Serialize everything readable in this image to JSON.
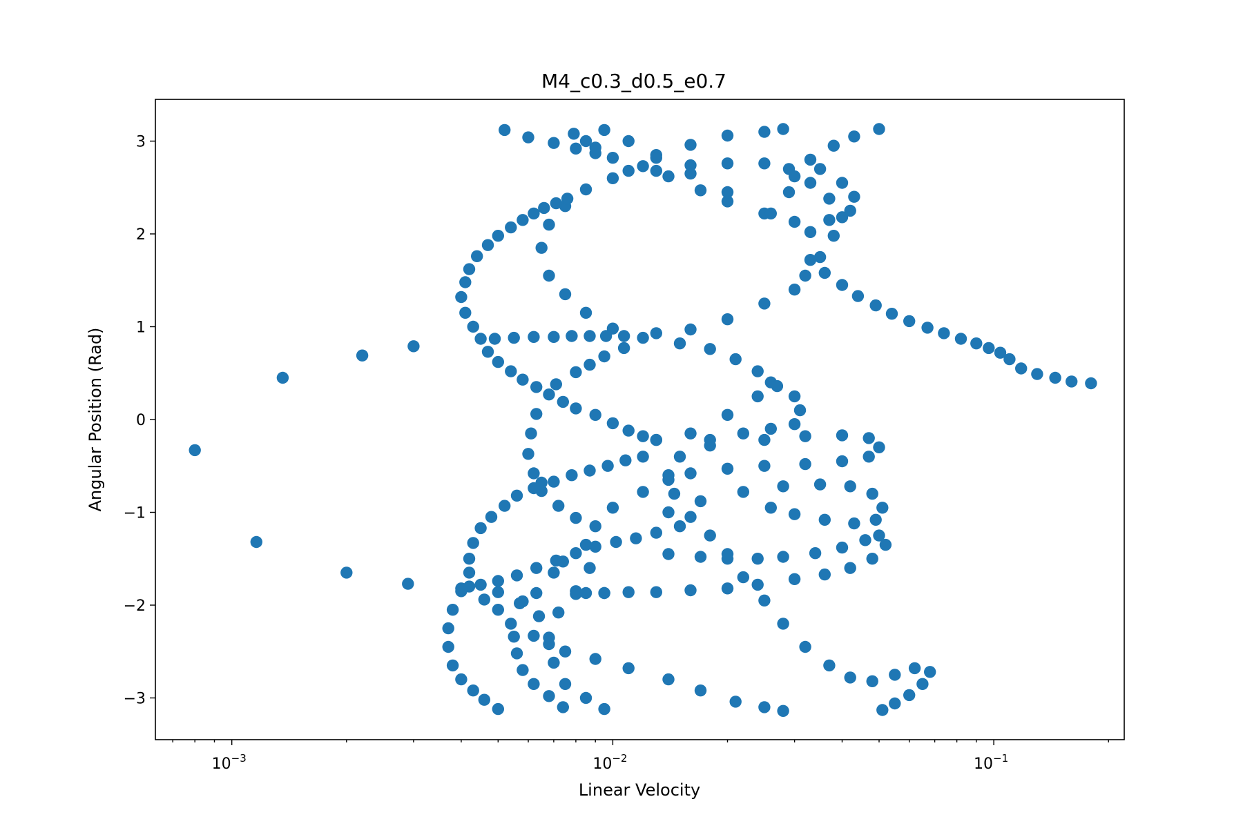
{
  "chart_data": {
    "type": "scatter",
    "title": "M4_c0.3_d0.5_e0.7",
    "xlabel": "Linear Velocity",
    "ylabel": "Angular Position (Rad)",
    "xscale": "log",
    "xlim": [
      0.00063,
      0.22
    ],
    "ylim": [
      -3.45,
      3.45
    ],
    "grid": false,
    "marker_color": "#1f77b4",
    "x_ticks": [
      {
        "value": 0.001,
        "base": "10",
        "exp": "−3"
      },
      {
        "value": 0.01,
        "base": "10",
        "exp": "−2"
      },
      {
        "value": 0.1,
        "base": "10",
        "exp": "−1"
      }
    ],
    "y_ticks": [
      {
        "value": 3,
        "label": "3"
      },
      {
        "value": 2,
        "label": "2"
      },
      {
        "value": 1,
        "label": "1"
      },
      {
        "value": 0,
        "label": "0"
      },
      {
        "value": -1,
        "label": "−1"
      },
      {
        "value": -2,
        "label": "−2"
      },
      {
        "value": -3,
        "label": "−3"
      }
    ],
    "scatter_points": [
      [
        0.0008,
        -0.33
      ],
      [
        0.00116,
        -1.32
      ],
      [
        0.00136,
        0.45
      ],
      [
        0.002,
        -1.65
      ],
      [
        0.0022,
        0.69
      ],
      [
        0.0029,
        -1.77
      ],
      [
        0.003,
        0.79
      ],
      [
        0.0052,
        3.12
      ],
      [
        0.006,
        3.04
      ],
      [
        0.007,
        2.98
      ],
      [
        0.008,
        2.92
      ],
      [
        0.009,
        2.87
      ],
      [
        0.01,
        2.82
      ],
      [
        0.012,
        2.73
      ],
      [
        0.014,
        2.62
      ],
      [
        0.017,
        2.47
      ],
      [
        0.02,
        2.35
      ],
      [
        0.025,
        2.22
      ],
      [
        0.03,
        2.13
      ],
      [
        0.0079,
        3.08
      ],
      [
        0.0085,
        3.0
      ],
      [
        0.009,
        2.93
      ],
      [
        0.0095,
        3.12
      ],
      [
        0.011,
        3.0
      ],
      [
        0.013,
        2.85
      ],
      [
        0.016,
        2.65
      ],
      [
        0.02,
        2.45
      ],
      [
        0.026,
        2.22
      ],
      [
        0.033,
        2.02
      ],
      [
        0.01,
        2.6
      ],
      [
        0.013,
        2.68
      ],
      [
        0.016,
        2.74
      ],
      [
        0.02,
        2.76
      ],
      [
        0.025,
        2.76
      ],
      [
        0.029,
        2.7
      ],
      [
        0.033,
        2.55
      ],
      [
        0.037,
        2.38
      ],
      [
        0.04,
        2.18
      ],
      [
        0.038,
        1.98
      ],
      [
        0.035,
        1.75
      ],
      [
        0.032,
        1.55
      ],
      [
        0.03,
        1.4
      ],
      [
        0.025,
        1.25
      ],
      [
        0.02,
        1.08
      ],
      [
        0.016,
        0.97
      ],
      [
        0.013,
        0.93
      ],
      [
        0.0085,
        2.48
      ],
      [
        0.0075,
        2.3
      ],
      [
        0.0068,
        2.1
      ],
      [
        0.0065,
        1.85
      ],
      [
        0.0068,
        1.55
      ],
      [
        0.0075,
        1.35
      ],
      [
        0.0085,
        1.15
      ],
      [
        0.01,
        0.98
      ],
      [
        0.012,
        0.88
      ],
      [
        0.015,
        0.82
      ],
      [
        0.018,
        0.76
      ],
      [
        0.021,
        0.65
      ],
      [
        0.024,
        0.52
      ],
      [
        0.026,
        0.4
      ],
      [
        0.028,
        3.13
      ],
      [
        0.025,
        3.1
      ],
      [
        0.02,
        3.06
      ],
      [
        0.016,
        2.96
      ],
      [
        0.013,
        2.82
      ],
      [
        0.011,
        2.68
      ],
      [
        0.05,
        3.13
      ],
      [
        0.043,
        3.05
      ],
      [
        0.038,
        2.95
      ],
      [
        0.033,
        2.8
      ],
      [
        0.03,
        2.62
      ],
      [
        0.029,
        2.45
      ],
      [
        0.035,
        2.7
      ],
      [
        0.04,
        2.55
      ],
      [
        0.043,
        2.4
      ],
      [
        0.042,
        2.25
      ],
      [
        0.037,
        2.15
      ],
      [
        0.033,
        1.72
      ],
      [
        0.036,
        1.58
      ],
      [
        0.04,
        1.45
      ],
      [
        0.044,
        1.33
      ],
      [
        0.049,
        1.23
      ],
      [
        0.054,
        1.14
      ],
      [
        0.06,
        1.06
      ],
      [
        0.067,
        0.99
      ],
      [
        0.074,
        0.93
      ],
      [
        0.082,
        0.87
      ],
      [
        0.09,
        0.82
      ],
      [
        0.097,
        0.77
      ],
      [
        0.104,
        0.72
      ],
      [
        0.11,
        0.65
      ],
      [
        0.118,
        0.55
      ],
      [
        0.13,
        0.49
      ],
      [
        0.145,
        0.45
      ],
      [
        0.16,
        0.41
      ],
      [
        0.18,
        0.39
      ],
      [
        0.004,
        1.32
      ],
      [
        0.0041,
        1.48
      ],
      [
        0.0042,
        1.62
      ],
      [
        0.0044,
        1.76
      ],
      [
        0.0047,
        1.88
      ],
      [
        0.005,
        1.98
      ],
      [
        0.0054,
        2.07
      ],
      [
        0.0058,
        2.15
      ],
      [
        0.0062,
        2.22
      ],
      [
        0.0066,
        2.28
      ],
      [
        0.0071,
        2.33
      ],
      [
        0.0076,
        2.38
      ],
      [
        0.0041,
        1.15
      ],
      [
        0.0043,
        1.0
      ],
      [
        0.0045,
        0.87
      ],
      [
        0.0047,
        0.73
      ],
      [
        0.005,
        0.62
      ],
      [
        0.0054,
        0.52
      ],
      [
        0.0058,
        0.43
      ],
      [
        0.0063,
        0.35
      ],
      [
        0.0068,
        0.27
      ],
      [
        0.0074,
        0.19
      ],
      [
        0.008,
        0.12
      ],
      [
        0.009,
        0.05
      ],
      [
        0.01,
        -0.04
      ],
      [
        0.011,
        -0.12
      ],
      [
        0.012,
        -0.18
      ],
      [
        0.013,
        -0.22
      ],
      [
        0.0049,
        0.87
      ],
      [
        0.0055,
        0.88
      ],
      [
        0.0062,
        0.89
      ],
      [
        0.007,
        0.89
      ],
      [
        0.0078,
        0.9
      ],
      [
        0.0087,
        0.9
      ],
      [
        0.0096,
        0.9
      ],
      [
        0.0107,
        0.9
      ],
      [
        0.0107,
        0.77
      ],
      [
        0.0095,
        0.68
      ],
      [
        0.0087,
        0.59
      ],
      [
        0.008,
        0.51
      ],
      [
        0.0071,
        0.38
      ],
      [
        0.0063,
        0.06
      ],
      [
        0.0061,
        -0.15
      ],
      [
        0.006,
        -0.37
      ],
      [
        0.0062,
        -0.58
      ],
      [
        0.0065,
        -0.68
      ],
      [
        0.0065,
        -0.77
      ],
      [
        0.013,
        -0.22
      ],
      [
        0.016,
        -0.15
      ],
      [
        0.02,
        0.05
      ],
      [
        0.024,
        0.25
      ],
      [
        0.027,
        0.36
      ],
      [
        0.03,
        0.25
      ],
      [
        0.031,
        0.1
      ],
      [
        0.03,
        -0.05
      ],
      [
        0.026,
        -0.1
      ],
      [
        0.022,
        -0.15
      ],
      [
        0.018,
        -0.22
      ],
      [
        0.015,
        -0.4
      ],
      [
        0.014,
        -0.6
      ],
      [
        0.0145,
        -0.8
      ],
      [
        0.016,
        -1.05
      ],
      [
        0.018,
        -1.25
      ],
      [
        0.02,
        -1.45
      ],
      [
        0.022,
        -1.7
      ],
      [
        0.025,
        -1.95
      ],
      [
        0.028,
        -2.2
      ],
      [
        0.032,
        -2.45
      ],
      [
        0.037,
        -2.65
      ],
      [
        0.042,
        -2.78
      ],
      [
        0.048,
        -2.82
      ],
      [
        0.055,
        -2.75
      ],
      [
        0.062,
        -2.68
      ],
      [
        0.068,
        -2.72
      ],
      [
        0.065,
        -2.85
      ],
      [
        0.06,
        -2.97
      ],
      [
        0.055,
        -3.06
      ],
      [
        0.051,
        -3.13
      ],
      [
        0.018,
        -0.28
      ],
      [
        0.025,
        -0.22
      ],
      [
        0.032,
        -0.18
      ],
      [
        0.04,
        -0.17
      ],
      [
        0.047,
        -0.2
      ],
      [
        0.05,
        -0.3
      ],
      [
        0.047,
        -0.4
      ],
      [
        0.04,
        -0.45
      ],
      [
        0.032,
        -0.48
      ],
      [
        0.025,
        -0.5
      ],
      [
        0.02,
        -0.53
      ],
      [
        0.016,
        -0.58
      ],
      [
        0.014,
        -0.65
      ],
      [
        0.012,
        -0.78
      ],
      [
        0.01,
        -0.95
      ],
      [
        0.009,
        -1.15
      ],
      [
        0.0085,
        -1.35
      ],
      [
        0.0087,
        -1.6
      ],
      [
        0.008,
        -1.85
      ],
      [
        0.0072,
        -2.08
      ],
      [
        0.0068,
        -2.35
      ],
      [
        0.007,
        -2.62
      ],
      [
        0.0075,
        -2.85
      ],
      [
        0.0085,
        -3.0
      ],
      [
        0.0095,
        -3.12
      ],
      [
        0.014,
        -1.0
      ],
      [
        0.017,
        -0.88
      ],
      [
        0.022,
        -0.78
      ],
      [
        0.028,
        -0.72
      ],
      [
        0.035,
        -0.7
      ],
      [
        0.042,
        -0.72
      ],
      [
        0.048,
        -0.8
      ],
      [
        0.051,
        -0.95
      ],
      [
        0.049,
        -1.08
      ],
      [
        0.043,
        -1.12
      ],
      [
        0.036,
        -1.08
      ],
      [
        0.03,
        -1.02
      ],
      [
        0.026,
        -0.95
      ],
      [
        0.052,
        -1.35
      ],
      [
        0.048,
        -1.5
      ],
      [
        0.042,
        -1.6
      ],
      [
        0.036,
        -1.67
      ],
      [
        0.03,
        -1.72
      ],
      [
        0.024,
        -1.78
      ],
      [
        0.02,
        -1.82
      ],
      [
        0.016,
        -1.84
      ],
      [
        0.013,
        -1.86
      ],
      [
        0.011,
        -1.86
      ],
      [
        0.0095,
        -1.87
      ],
      [
        0.0085,
        -1.87
      ],
      [
        0.014,
        -1.45
      ],
      [
        0.017,
        -1.48
      ],
      [
        0.02,
        -1.5
      ],
      [
        0.024,
        -1.5
      ],
      [
        0.028,
        -1.48
      ],
      [
        0.034,
        -1.44
      ],
      [
        0.04,
        -1.38
      ],
      [
        0.046,
        -1.3
      ],
      [
        0.05,
        -1.25
      ],
      [
        0.004,
        -1.85
      ],
      [
        0.0038,
        -2.05
      ],
      [
        0.0037,
        -2.25
      ],
      [
        0.0037,
        -2.45
      ],
      [
        0.0038,
        -2.65
      ],
      [
        0.004,
        -2.8
      ],
      [
        0.0043,
        -2.92
      ],
      [
        0.0046,
        -3.02
      ],
      [
        0.005,
        -3.12
      ],
      [
        0.004,
        -1.82
      ],
      [
        0.0045,
        -1.78
      ],
      [
        0.005,
        -1.74
      ],
      [
        0.0056,
        -1.68
      ],
      [
        0.0063,
        -1.6
      ],
      [
        0.0071,
        -1.52
      ],
      [
        0.008,
        -1.44
      ],
      [
        0.009,
        -1.37
      ],
      [
        0.0102,
        -1.32
      ],
      [
        0.0115,
        -1.28
      ],
      [
        0.013,
        -1.22
      ],
      [
        0.015,
        -1.15
      ],
      [
        0.0042,
        -1.65
      ],
      [
        0.0042,
        -1.5
      ],
      [
        0.0043,
        -1.33
      ],
      [
        0.0045,
        -1.17
      ],
      [
        0.0048,
        -1.05
      ],
      [
        0.0052,
        -0.93
      ],
      [
        0.0056,
        -0.82
      ],
      [
        0.0062,
        -0.74
      ],
      [
        0.007,
        -0.67
      ],
      [
        0.0078,
        -0.6
      ],
      [
        0.0087,
        -0.55
      ],
      [
        0.0097,
        -0.5
      ],
      [
        0.0108,
        -0.44
      ],
      [
        0.012,
        -0.4
      ],
      [
        0.0042,
        -1.8
      ],
      [
        0.0046,
        -1.94
      ],
      [
        0.005,
        -2.05
      ],
      [
        0.0054,
        -2.2
      ],
      [
        0.0055,
        -2.34
      ],
      [
        0.0056,
        -2.52
      ],
      [
        0.0058,
        -2.7
      ],
      [
        0.0062,
        -2.85
      ],
      [
        0.0068,
        -2.98
      ],
      [
        0.0074,
        -3.1
      ],
      [
        0.005,
        -1.86
      ],
      [
        0.0058,
        -1.96
      ],
      [
        0.0064,
        -2.12
      ],
      [
        0.0062,
        -2.33
      ],
      [
        0.0068,
        -2.42
      ],
      [
        0.0075,
        -2.5
      ],
      [
        0.009,
        -2.58
      ],
      [
        0.011,
        -2.68
      ],
      [
        0.014,
        -2.8
      ],
      [
        0.017,
        -2.92
      ],
      [
        0.021,
        -3.04
      ],
      [
        0.025,
        -3.1
      ],
      [
        0.028,
        -3.14
      ],
      [
        0.0057,
        -1.98
      ],
      [
        0.0063,
        -1.87
      ],
      [
        0.007,
        -1.65
      ],
      [
        0.0074,
        -1.53
      ],
      [
        0.0072,
        -0.93
      ],
      [
        0.008,
        -1.06
      ],
      [
        0.008,
        -1.88
      ],
      [
        0.0095,
        -1.87
      ]
    ]
  }
}
